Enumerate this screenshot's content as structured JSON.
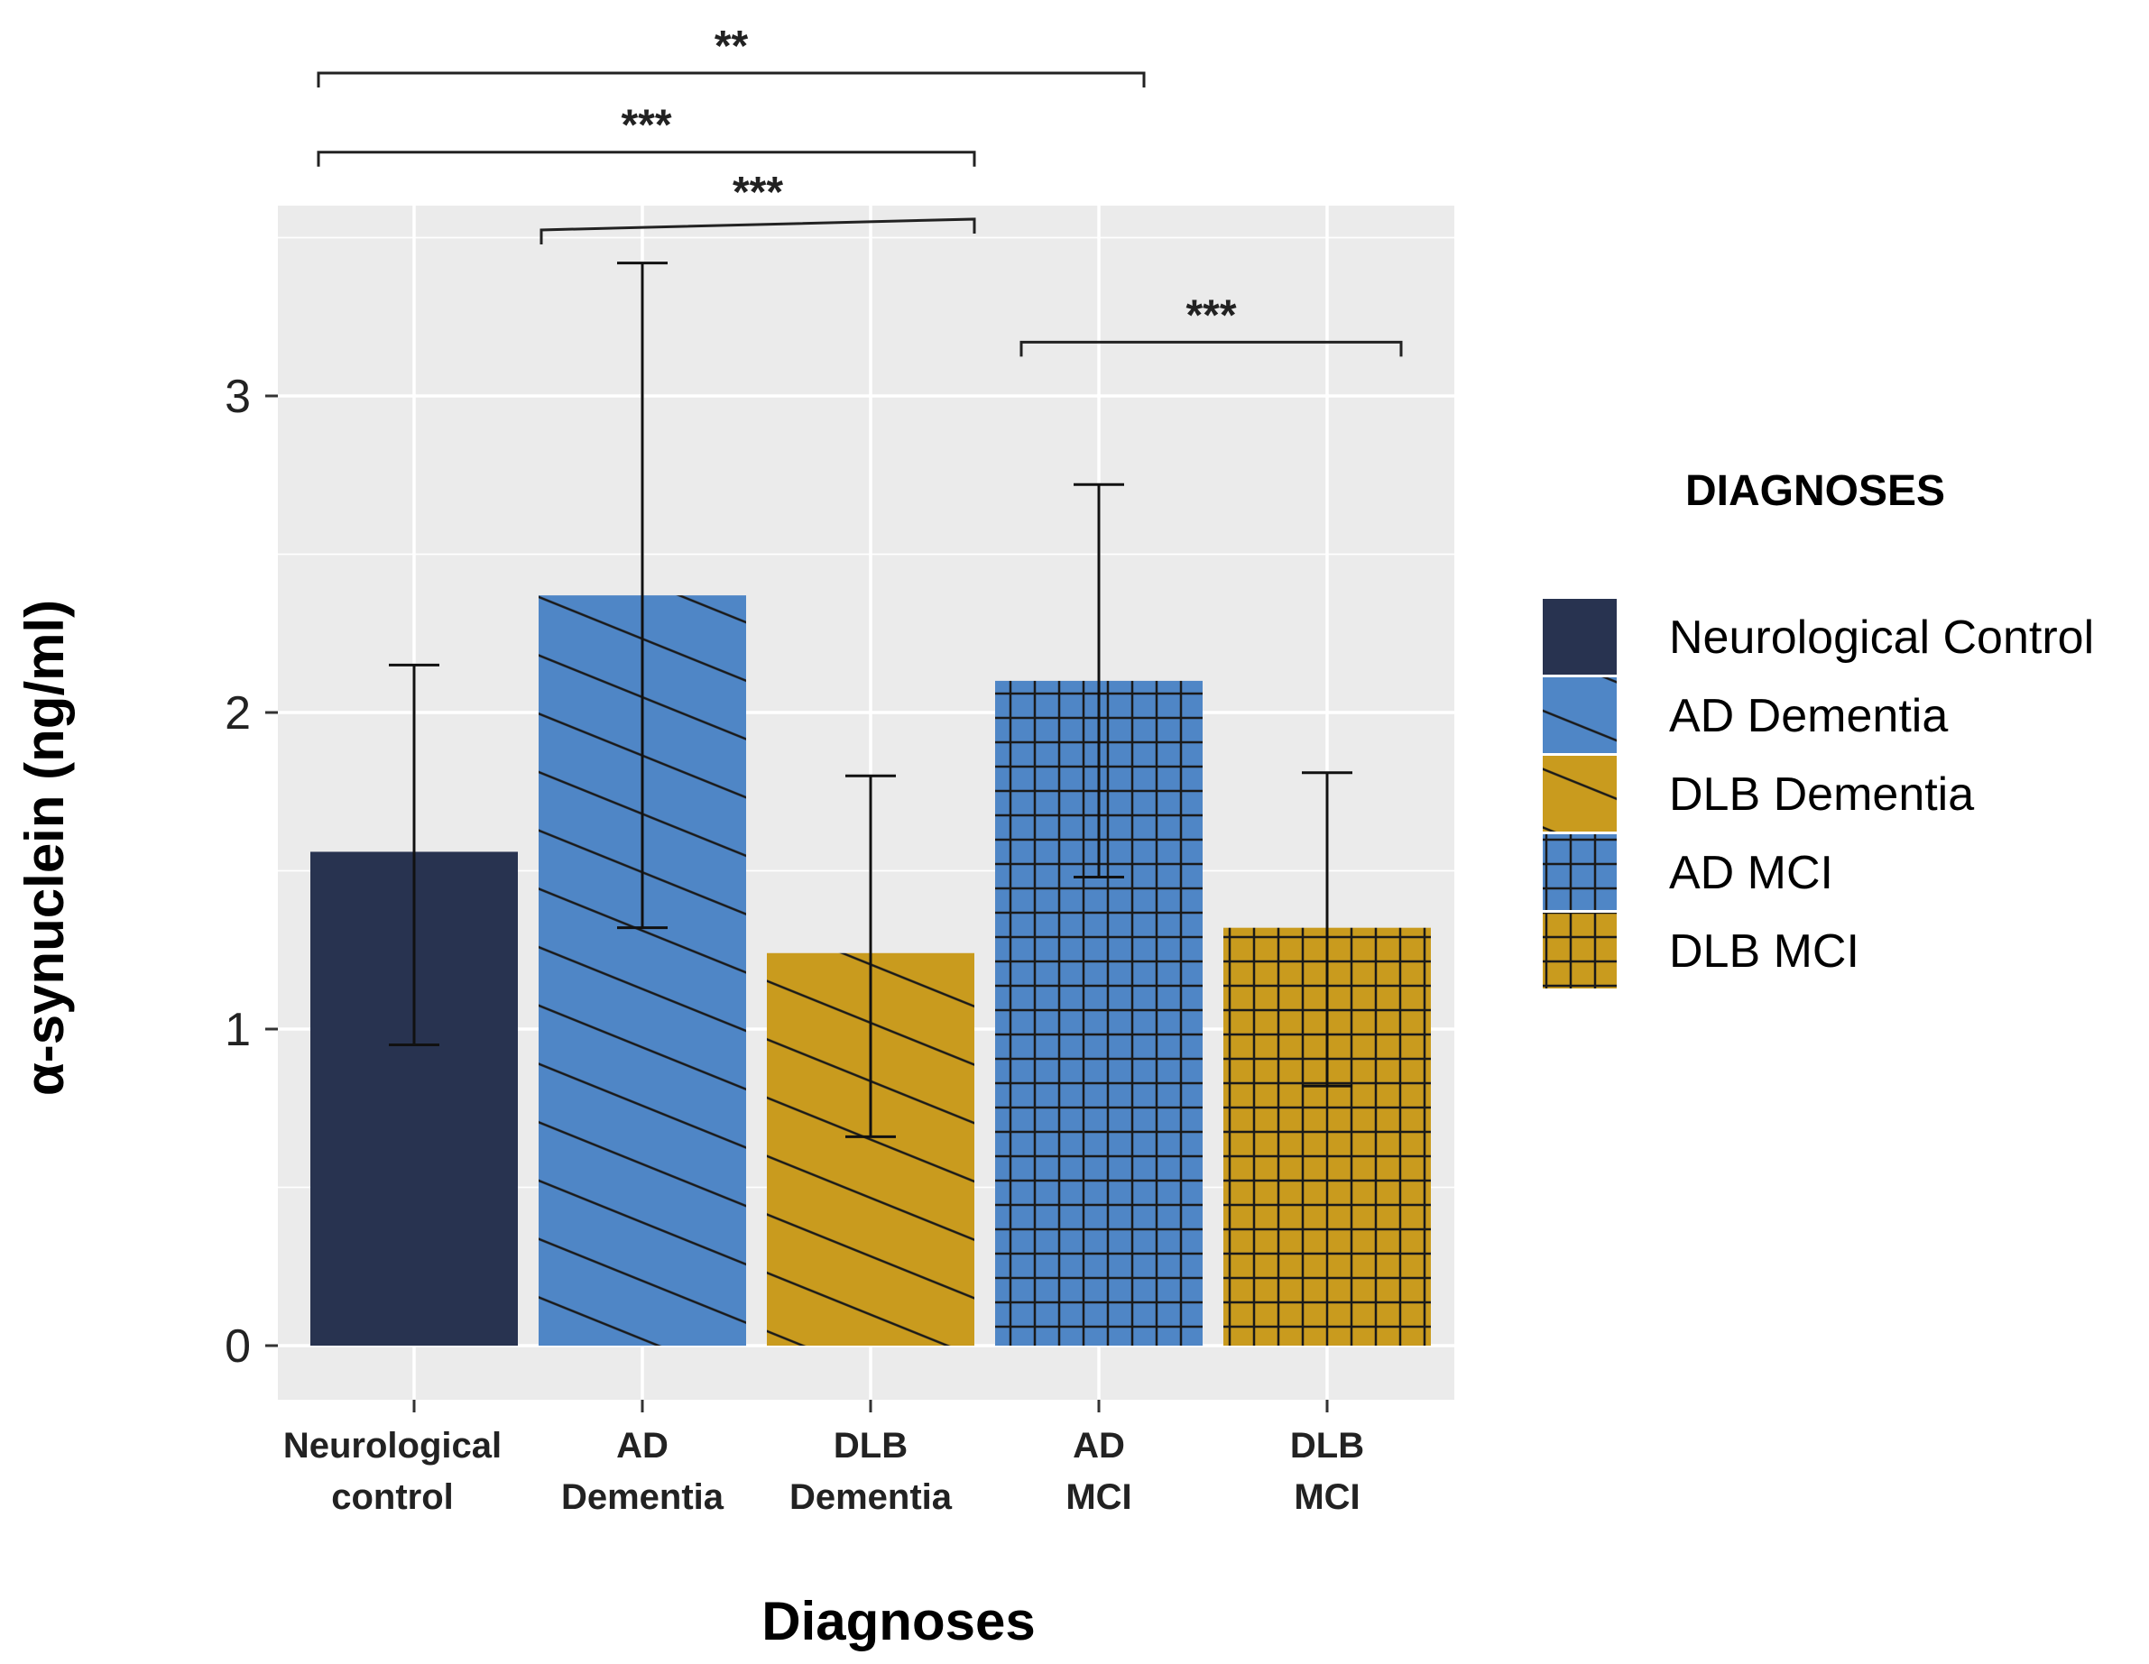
{
  "chart_data": {
    "type": "bar",
    "title": "",
    "xlabel": "Diagnoses",
    "ylabel": "α-synuclein (ng/ml)",
    "ylim": [
      -0.17,
      3.6
    ],
    "yticks": [
      0,
      1,
      2,
      3
    ],
    "grid": true,
    "categories": [
      {
        "line1": "Neurological",
        "line2": "control"
      },
      {
        "line1": "AD",
        "line2": "Dementia"
      },
      {
        "line1": "DLB",
        "line2": "Dementia"
      },
      {
        "line1": "AD",
        "line2": "MCI"
      },
      {
        "line1": "DLB",
        "line2": "MCI"
      }
    ],
    "values": [
      1.56,
      2.37,
      1.24,
      2.1,
      1.32
    ],
    "error_low": [
      0.95,
      1.32,
      0.66,
      1.48,
      0.82
    ],
    "error_high": [
      2.15,
      3.42,
      1.8,
      2.72,
      1.81
    ],
    "patterns": [
      "none",
      "diagonal",
      "diagonal",
      "grid",
      "grid"
    ],
    "colors": [
      "#283350",
      "#4f86c6",
      "#c99b1e",
      "#4f86c6",
      "#c99b1e"
    ],
    "legend": {
      "title": "DIAGNOSES",
      "position": "right",
      "entries": [
        "Neurological Control",
        "AD Dementia",
        "DLB Dementia",
        "AD MCI",
        "DLB MCI"
      ]
    },
    "significance": [
      {
        "from": 0,
        "to": 3,
        "label": "**",
        "level": 4.02
      },
      {
        "from": 0,
        "to": 2,
        "label": "***",
        "level": 3.77
      },
      {
        "from": 1,
        "to": 2,
        "label": "***",
        "level": 3.55
      },
      {
        "from": 3,
        "to": 4,
        "label": "***",
        "level": 3.17
      }
    ]
  }
}
